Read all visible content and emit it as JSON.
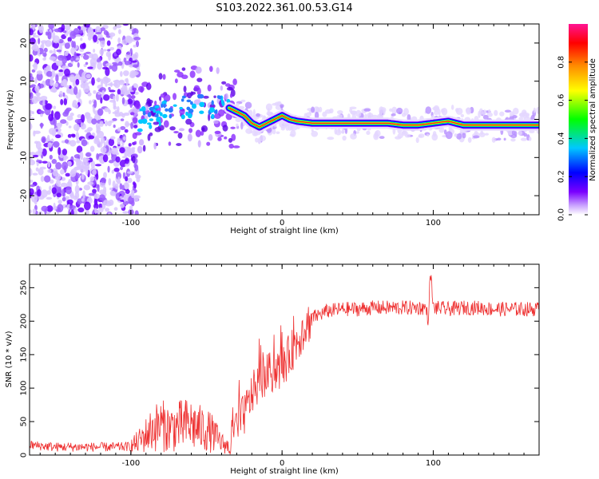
{
  "figure_title": "S103.2022.361.00.53.G14",
  "chart_data": [
    {
      "type": "heatmap",
      "panel": "top",
      "xlabel": "Height of straight line (km)",
      "ylabel": "Frequency (Hz)",
      "xlim": [
        -167,
        170
      ],
      "ylim": [
        -25,
        25
      ],
      "xticks": [
        -100,
        0,
        100
      ],
      "yticks": [
        -20,
        -10,
        0,
        10,
        20
      ],
      "colorbar": {
        "label": "Normalized spectral amplitude",
        "range": [
          0,
          1
        ],
        "ticks": [
          0.0,
          0.2,
          0.4,
          0.6,
          0.8
        ],
        "colormap": [
          "#ffffff",
          "#7a00ff",
          "#0000ff",
          "#00c8ff",
          "#00ff00",
          "#ffff00",
          "#ff8c00",
          "#ff0000",
          "#ff1493"
        ]
      },
      "ridge": {
        "x": [
          -100,
          -90,
          -80,
          -70,
          -60,
          -50,
          -40,
          -35,
          -30,
          -25,
          -20,
          -15,
          -10,
          -5,
          0,
          5,
          10,
          20,
          40,
          60,
          70,
          80,
          90,
          100,
          110,
          120,
          140,
          160,
          170
        ],
        "y": [
          -1,
          0,
          2,
          3,
          4,
          3,
          4,
          3,
          2,
          1,
          -1,
          -2,
          -1,
          0,
          1,
          0,
          -0.5,
          -1,
          -1,
          -1,
          -1,
          -1.5,
          -1.5,
          -1,
          -0.5,
          -1.5,
          -1.5,
          -1.5,
          -1.5
        ]
      }
    },
    {
      "type": "line",
      "panel": "bottom",
      "xlabel": "Height of straight line (km)",
      "ylabel": "SNR (10 * v/v)",
      "xlim": [
        -167,
        170
      ],
      "ylim": [
        0,
        285
      ],
      "xticks": [
        -100,
        0,
        100
      ],
      "yticks": [
        0,
        50,
        100,
        150,
        200,
        250
      ],
      "series": [
        {
          "color": "#ee3030",
          "x": [
            -167,
            -150,
            -130,
            -110,
            -100,
            -95,
            -90,
            -85,
            -80,
            -75,
            -70,
            -65,
            -60,
            -55,
            -50,
            -45,
            -40,
            -35,
            -30,
            -25,
            -20,
            -15,
            -10,
            -5,
            0,
            5,
            10,
            15,
            20,
            25,
            30,
            40,
            50,
            60,
            70,
            80,
            90,
            95,
            97,
            98,
            100,
            110,
            120,
            130,
            140,
            150,
            160,
            170
          ],
          "y": [
            15,
            12,
            12,
            12,
            13,
            20,
            30,
            40,
            45,
            40,
            42,
            45,
            45,
            40,
            38,
            30,
            18,
            12,
            40,
            60,
            90,
            110,
            120,
            125,
            130,
            150,
            170,
            190,
            205,
            210,
            215,
            218,
            218,
            220,
            220,
            220,
            220,
            220,
            200,
            280,
            220,
            218,
            220,
            220,
            218,
            218,
            218,
            218
          ]
        }
      ]
    }
  ]
}
